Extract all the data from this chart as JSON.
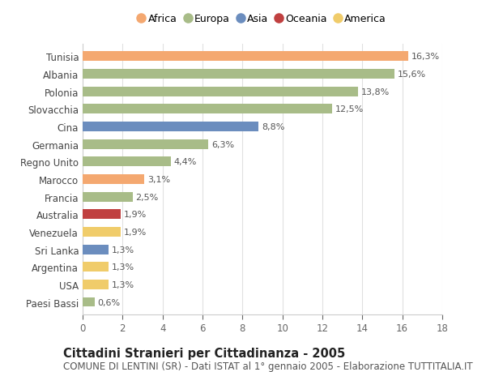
{
  "countries": [
    "Tunisia",
    "Albania",
    "Polonia",
    "Slovacchia",
    "Cina",
    "Germania",
    "Regno Unito",
    "Marocco",
    "Francia",
    "Australia",
    "Venezuela",
    "Sri Lanka",
    "Argentina",
    "USA",
    "Paesi Bassi"
  ],
  "values": [
    16.3,
    15.6,
    13.8,
    12.5,
    8.8,
    6.3,
    4.4,
    3.1,
    2.5,
    1.9,
    1.9,
    1.3,
    1.3,
    1.3,
    0.6
  ],
  "labels": [
    "16,3%",
    "15,6%",
    "13,8%",
    "12,5%",
    "8,8%",
    "6,3%",
    "4,4%",
    "3,1%",
    "2,5%",
    "1,9%",
    "1,9%",
    "1,3%",
    "1,3%",
    "1,3%",
    "0,6%"
  ],
  "continents": [
    "Africa",
    "Europa",
    "Europa",
    "Europa",
    "Asia",
    "Europa",
    "Europa",
    "Africa",
    "Europa",
    "Oceania",
    "America",
    "Asia",
    "America",
    "America",
    "Europa"
  ],
  "continent_colors": {
    "Africa": "#F4A870",
    "Europa": "#A8BC88",
    "Asia": "#6B8DBE",
    "Oceania": "#C04040",
    "America": "#F0CC6A"
  },
  "legend_order": [
    "Africa",
    "Europa",
    "Asia",
    "Oceania",
    "America"
  ],
  "title": "Cittadini Stranieri per Cittadinanza - 2005",
  "subtitle": "COMUNE DI LENTINI (SR) - Dati ISTAT al 1° gennaio 2005 - Elaborazione TUTTITALIA.IT",
  "xlim": [
    0,
    18
  ],
  "xticks": [
    0,
    2,
    4,
    6,
    8,
    10,
    12,
    14,
    16,
    18
  ],
  "background_color": "#ffffff",
  "grid_color": "#e0e0e0",
  "bar_height": 0.55,
  "title_fontsize": 10.5,
  "subtitle_fontsize": 8.5,
  "label_fontsize": 8,
  "tick_fontsize": 8.5,
  "legend_fontsize": 9
}
